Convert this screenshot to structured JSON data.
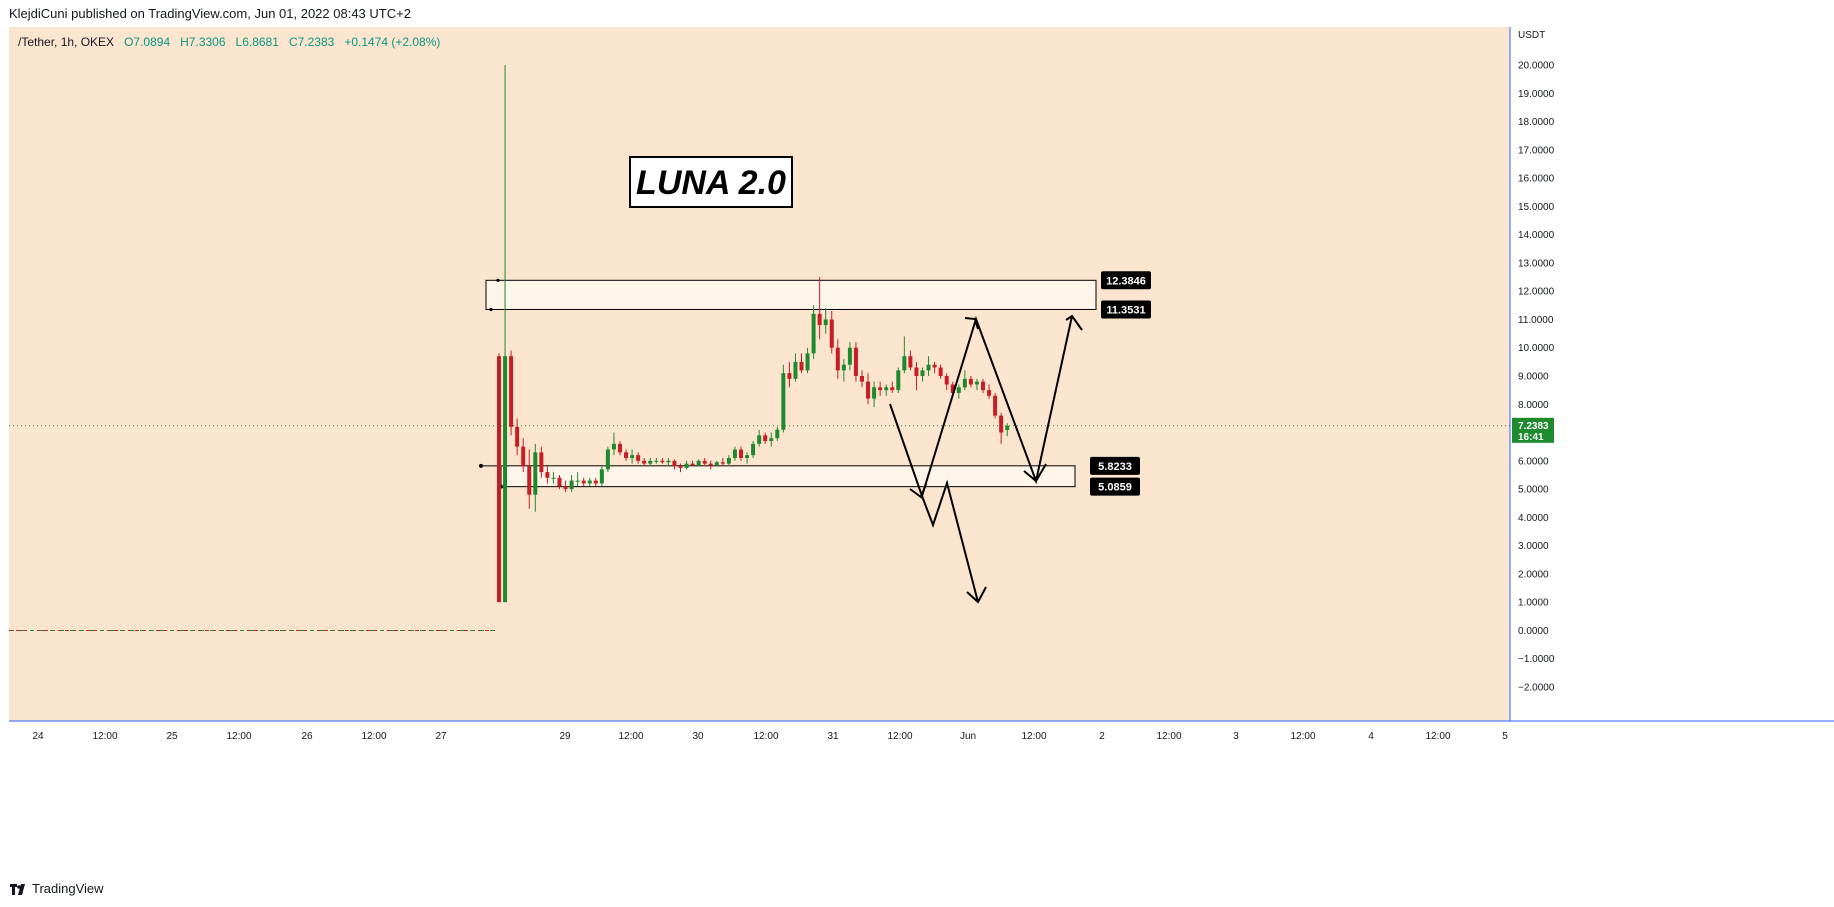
{
  "header": {
    "publisher": "KlejdiCuni published on TradingView.com, Jun 01, 2022 08:43 UTC+2"
  },
  "legend": {
    "symbol": "/Tether, 1h, OKEX",
    "open": "O7.0894",
    "high": "H7.3306",
    "low": "L6.8681",
    "close": "C7.2383",
    "change": "+0.1474 (+2.08%)"
  },
  "footer": {
    "brand": "TradingView"
  },
  "colors": {
    "background": "#fbe5cf",
    "up": "#1e8a2e",
    "down": "#c81d25",
    "box_fill": "#fdf4ea",
    "axis_line": "#2962ff",
    "price_badge": "#1e8a2e"
  },
  "chart_data": {
    "type": "candlestick",
    "title": "LUNA 2.0",
    "currency_label": "USDT",
    "price_axis": {
      "min": -2,
      "max": 20,
      "ticks": [
        "20.0000",
        "19.0000",
        "18.0000",
        "17.0000",
        "16.0000",
        "15.0000",
        "14.0000",
        "13.0000",
        "12.0000",
        "11.0000",
        "10.0000",
        "9.0000",
        "8.0000",
        "7.0000",
        "6.0000",
        "5.0000",
        "4.0000",
        "3.0000",
        "2.0000",
        "1.0000",
        "0.0000",
        "−1.0000",
        "−2.0000"
      ]
    },
    "time_axis": {
      "ticks": [
        "24",
        "12:00",
        "25",
        "12:00",
        "26",
        "12:00",
        "27",
        "29",
        "12:00",
        "30",
        "12:00",
        "31",
        "12:00",
        "Jun",
        "12:00",
        "2",
        "12:00",
        "3",
        "12:00",
        "4",
        "12:00",
        "5"
      ]
    },
    "last_price": {
      "value": "7.2383",
      "countdown": "16:41"
    },
    "levels": [
      {
        "label": "12.3846",
        "value": 12.3846
      },
      {
        "label": "11.3531",
        "value": 11.3531
      },
      {
        "label": "5.8233",
        "value": 5.8233
      },
      {
        "label": "5.0859",
        "value": 5.0859
      }
    ],
    "zones": [
      {
        "name": "resistance-zone",
        "top": 12.3846,
        "bottom": 11.3531
      },
      {
        "name": "support-zone",
        "top": 5.8233,
        "bottom": 5.0859
      }
    ],
    "candles": [
      [
        9.7,
        9.8,
        1.0,
        1.0
      ],
      [
        1.0,
        20.0,
        1.0,
        9.7
      ],
      [
        9.7,
        9.9,
        6.9,
        7.2
      ],
      [
        7.2,
        7.5,
        6.2,
        6.5
      ],
      [
        6.5,
        6.8,
        5.6,
        5.8
      ],
      [
        5.8,
        6.4,
        4.3,
        4.8
      ],
      [
        4.8,
        6.6,
        4.2,
        6.3
      ],
      [
        6.3,
        6.5,
        5.4,
        5.6
      ],
      [
        5.6,
        5.8,
        5.2,
        5.4
      ],
      [
        5.4,
        5.6,
        5.2,
        5.4
      ],
      [
        5.4,
        5.5,
        5.0,
        5.1
      ],
      [
        5.1,
        5.3,
        4.9,
        5.0
      ],
      [
        5.0,
        5.5,
        4.9,
        5.3
      ],
      [
        5.3,
        5.6,
        5.1,
        5.3
      ],
      [
        5.3,
        5.4,
        5.1,
        5.2
      ],
      [
        5.2,
        5.4,
        5.1,
        5.3
      ],
      [
        5.3,
        5.4,
        5.1,
        5.2
      ],
      [
        5.2,
        5.8,
        5.1,
        5.7
      ],
      [
        5.7,
        6.5,
        5.6,
        6.4
      ],
      [
        6.4,
        7.0,
        6.2,
        6.6
      ],
      [
        6.6,
        6.7,
        6.2,
        6.3
      ],
      [
        6.3,
        6.4,
        6.0,
        6.1
      ],
      [
        6.1,
        6.4,
        5.9,
        6.2
      ],
      [
        6.2,
        6.3,
        5.9,
        6.0
      ],
      [
        6.0,
        6.1,
        5.8,
        5.9
      ],
      [
        5.9,
        6.1,
        5.8,
        6.0
      ],
      [
        6.0,
        6.1,
        5.9,
        6.0
      ],
      [
        6.0,
        6.1,
        5.9,
        5.95
      ],
      [
        5.95,
        6.1,
        5.8,
        6.0
      ],
      [
        6.0,
        6.05,
        5.7,
        5.8
      ],
      [
        5.8,
        5.9,
        5.6,
        5.75
      ],
      [
        5.75,
        6.0,
        5.7,
        5.9
      ],
      [
        5.9,
        6.0,
        5.8,
        5.85
      ],
      [
        5.85,
        6.05,
        5.8,
        6.0
      ],
      [
        6.0,
        6.1,
        5.8,
        5.9
      ],
      [
        5.9,
        6.0,
        5.7,
        5.85
      ],
      [
        5.85,
        6.0,
        5.8,
        5.95
      ],
      [
        5.95,
        6.1,
        5.8,
        5.9
      ],
      [
        5.9,
        6.2,
        5.8,
        6.1
      ],
      [
        6.1,
        6.5,
        6.0,
        6.4
      ],
      [
        6.4,
        6.5,
        6.0,
        6.1
      ],
      [
        6.1,
        6.3,
        5.9,
        6.2
      ],
      [
        6.2,
        6.7,
        6.1,
        6.6
      ],
      [
        6.6,
        7.1,
        6.5,
        6.9
      ],
      [
        6.9,
        7.0,
        6.6,
        6.7
      ],
      [
        6.7,
        7.0,
        6.5,
        6.8
      ],
      [
        6.8,
        7.2,
        6.7,
        7.1
      ],
      [
        7.1,
        9.4,
        7.0,
        9.1
      ],
      [
        9.1,
        9.5,
        8.6,
        8.9
      ],
      [
        8.9,
        9.8,
        8.8,
        9.5
      ],
      [
        9.5,
        9.8,
        9.1,
        9.2
      ],
      [
        9.2,
        10.0,
        9.1,
        9.8
      ],
      [
        9.8,
        11.5,
        9.6,
        11.2
      ],
      [
        11.2,
        12.5,
        10.3,
        10.8
      ],
      [
        10.8,
        11.4,
        10.5,
        11.0
      ],
      [
        11.0,
        11.3,
        9.8,
        10.0
      ],
      [
        10.0,
        10.3,
        8.9,
        9.2
      ],
      [
        9.2,
        9.6,
        8.8,
        9.4
      ],
      [
        9.4,
        10.2,
        9.2,
        10.0
      ],
      [
        10.0,
        10.2,
        8.8,
        9.0
      ],
      [
        9.0,
        9.2,
        8.6,
        8.8
      ],
      [
        8.8,
        9.1,
        8.0,
        8.2
      ],
      [
        8.2,
        8.8,
        7.9,
        8.6
      ],
      [
        8.6,
        8.8,
        8.3,
        8.5
      ],
      [
        8.5,
        8.7,
        8.3,
        8.6
      ],
      [
        8.6,
        8.8,
        8.4,
        8.5
      ],
      [
        8.5,
        9.3,
        8.4,
        9.2
      ],
      [
        9.2,
        10.4,
        9.1,
        9.7
      ],
      [
        9.7,
        9.9,
        9.2,
        9.3
      ],
      [
        9.3,
        9.5,
        8.5,
        9.0
      ],
      [
        9.0,
        9.3,
        8.8,
        9.2
      ],
      [
        9.2,
        9.7,
        9.0,
        9.4
      ],
      [
        9.4,
        9.5,
        9.1,
        9.3
      ],
      [
        9.3,
        9.4,
        8.9,
        9.0
      ],
      [
        9.0,
        9.1,
        8.5,
        8.7
      ],
      [
        8.7,
        8.8,
        8.3,
        8.4
      ],
      [
        8.4,
        8.7,
        8.2,
        8.6
      ],
      [
        8.6,
        9.2,
        8.5,
        8.9
      ],
      [
        8.9,
        9.0,
        8.6,
        8.7
      ],
      [
        8.7,
        8.9,
        8.5,
        8.8
      ],
      [
        8.8,
        8.9,
        8.4,
        8.5
      ],
      [
        8.5,
        8.7,
        8.2,
        8.3
      ],
      [
        8.3,
        8.4,
        7.5,
        7.6
      ],
      [
        7.6,
        7.7,
        6.6,
        7.0
      ],
      [
        7.0894,
        7.3306,
        6.8681,
        7.2383
      ]
    ]
  }
}
